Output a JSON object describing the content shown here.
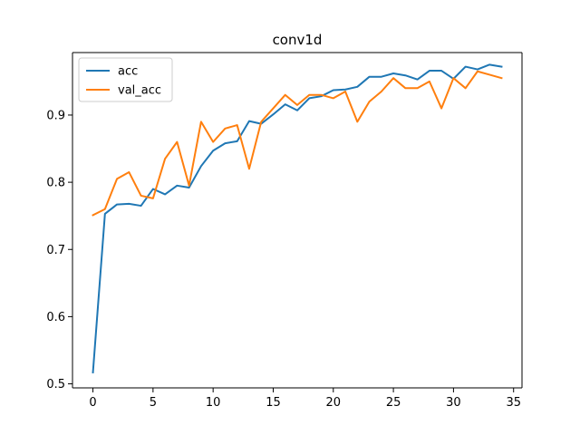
{
  "chart_data": {
    "type": "line",
    "title": "conv1d",
    "xlabel": "",
    "ylabel": "",
    "xlim": [
      -1.7,
      35.7
    ],
    "ylim": [
      0.494,
      0.993
    ],
    "xticks": [
      0,
      5,
      10,
      15,
      20,
      25,
      30,
      35
    ],
    "yticks": [
      0.5,
      0.6,
      0.7,
      0.8,
      0.9
    ],
    "ytick_labels": [
      "0.5",
      "0.6",
      "0.7",
      "0.8",
      "0.9"
    ],
    "grid": false,
    "legend": "top-left",
    "x": [
      0,
      1,
      2,
      3,
      4,
      5,
      6,
      7,
      8,
      9,
      10,
      11,
      12,
      13,
      14,
      15,
      16,
      17,
      18,
      19,
      20,
      21,
      22,
      23,
      24,
      25,
      26,
      27,
      28,
      29,
      30,
      31,
      32,
      33,
      34
    ],
    "series": [
      {
        "name": "acc",
        "color": "#1f77b4",
        "values": [
          0.517,
          0.753,
          0.767,
          0.768,
          0.765,
          0.79,
          0.782,
          0.795,
          0.792,
          0.824,
          0.847,
          0.858,
          0.861,
          0.891,
          0.887,
          0.901,
          0.916,
          0.907,
          0.925,
          0.928,
          0.937,
          0.938,
          0.942,
          0.957,
          0.957,
          0.962,
          0.959,
          0.953,
          0.966,
          0.966,
          0.954,
          0.972,
          0.968,
          0.975,
          0.972
        ]
      },
      {
        "name": "val_acc",
        "color": "#ff7f0e",
        "values": [
          0.751,
          0.76,
          0.805,
          0.815,
          0.78,
          0.776,
          0.835,
          0.86,
          0.795,
          0.89,
          0.86,
          0.88,
          0.885,
          0.82,
          0.89,
          0.91,
          0.93,
          0.915,
          0.93,
          0.93,
          0.925,
          0.935,
          0.89,
          0.92,
          0.935,
          0.955,
          0.94,
          0.94,
          0.95,
          0.91,
          0.955,
          0.94,
          0.965,
          0.96,
          0.955
        ]
      }
    ]
  }
}
